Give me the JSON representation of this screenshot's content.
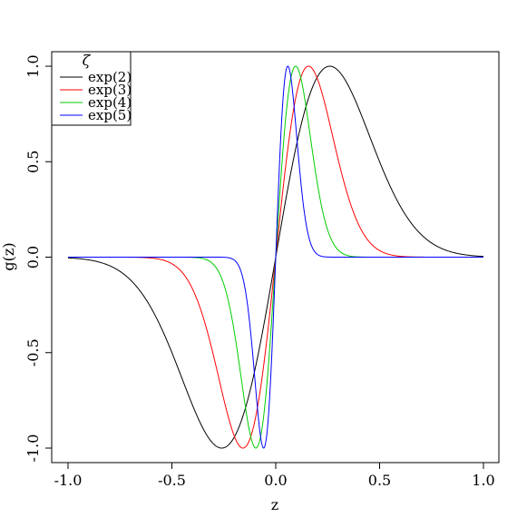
{
  "chart_data": {
    "type": "line",
    "title": "",
    "xlabel": "z",
    "ylabel": "g(z)",
    "xlim": [
      -1.0,
      1.0
    ],
    "ylim": [
      -1.0,
      1.0
    ],
    "xticks": [
      -1.0,
      -0.5,
      0.0,
      0.5,
      1.0
    ],
    "xtick_labels": [
      "-1.0",
      "-0.5",
      "0.0",
      "0.5",
      "1.0"
    ],
    "yticks": [
      -1.0,
      -0.5,
      0.0,
      0.5,
      1.0
    ],
    "ytick_labels": [
      "-1.0",
      "-0.5",
      "0.0",
      "0.5",
      "1.0"
    ],
    "grid": false,
    "legend": {
      "placement": "top-left",
      "title": "ζ"
    },
    "series": [
      {
        "name": "exp(2)",
        "color": "#000000",
        "zeta": 7.38905609893065
      },
      {
        "name": "exp(3)",
        "color": "#ff0000",
        "zeta": 20.085536923187668
      },
      {
        "name": "exp(4)",
        "color": "#00cd00",
        "zeta": 54.598150033144236
      },
      {
        "name": "exp(5)",
        "color": "#0000ff",
        "zeta": 148.4131591025766
      }
    ],
    "function_form": "g(z) = sqrt(2·e·ζ) · z · exp(-ζ·z²)"
  }
}
